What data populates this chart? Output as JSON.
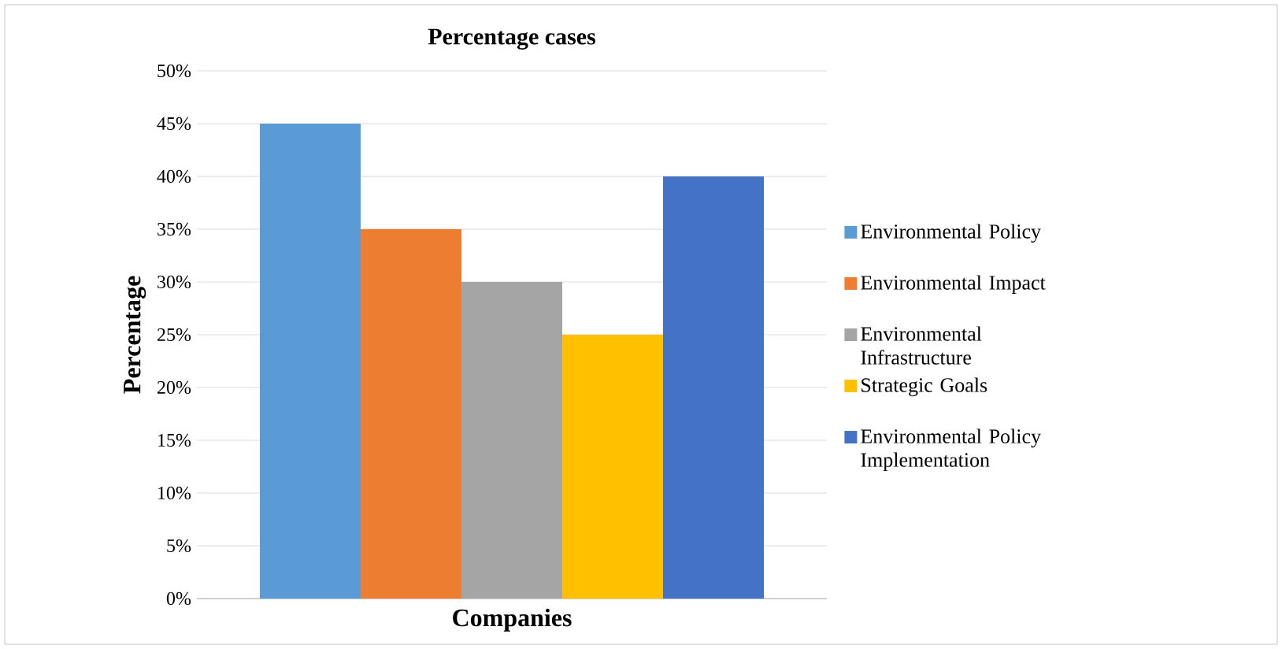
{
  "chart_data": {
    "type": "bar",
    "title": "Percentage cases",
    "xlabel": "Companies",
    "ylabel": "Percentage",
    "categories": [
      null
    ],
    "series": [
      {
        "name": "Environmental Policy",
        "color": "#5b9bd5",
        "values": [
          45
        ]
      },
      {
        "name": "Environmental Impact",
        "color": "#ed7d31",
        "values": [
          35
        ]
      },
      {
        "name": "Environmental Infrastructure",
        "color": "#a5a5a5",
        "values": [
          30
        ]
      },
      {
        "name": "Strategic Goals",
        "color": "#ffc000",
        "values": [
          25
        ]
      },
      {
        "name": "Environmental Policy Implementation",
        "color": "#4472c4",
        "values": [
          40
        ]
      }
    ],
    "ylim": [
      0,
      50
    ],
    "yticks": [
      {
        "value": 0,
        "label": "0%"
      },
      {
        "value": 5,
        "label": "5%"
      },
      {
        "value": 10,
        "label": "10%"
      },
      {
        "value": 15,
        "label": "15%"
      },
      {
        "value": 20,
        "label": "20%"
      },
      {
        "value": 25,
        "label": "25%"
      },
      {
        "value": 30,
        "label": "30%"
      },
      {
        "value": 35,
        "label": "35%"
      },
      {
        "value": 40,
        "label": "40%"
      },
      {
        "value": 45,
        "label": "45%"
      },
      {
        "value": 50,
        "label": "50%"
      }
    ],
    "grid": "y",
    "legend": "right"
  }
}
